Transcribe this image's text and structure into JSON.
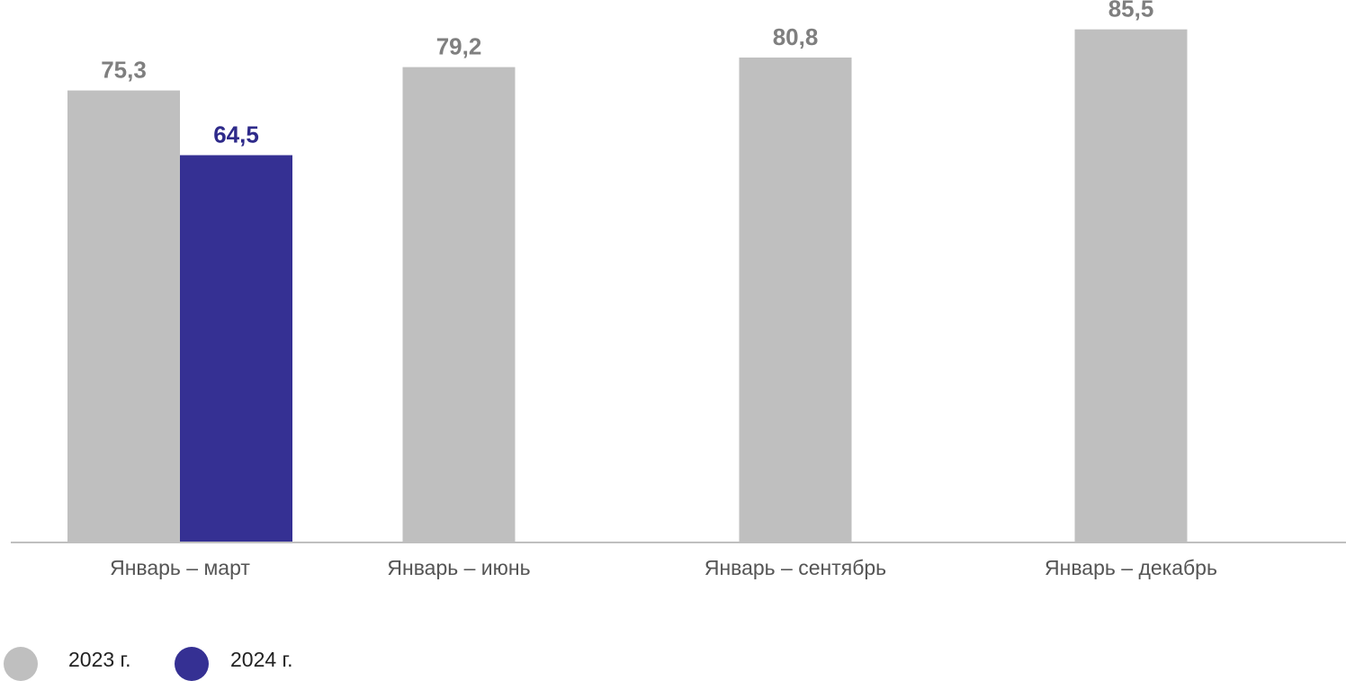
{
  "chart_data": {
    "type": "bar",
    "categories": [
      "Январь – март",
      "Январь – июнь",
      "Январь – сентябрь",
      "Январь – декабрь"
    ],
    "series": [
      {
        "name": "2023 г.",
        "color": "#bfbfbf",
        "label_color": "#7f7f7f",
        "values": [
          75.3,
          79.2,
          80.8,
          85.5
        ],
        "labels": [
          "75,3",
          "79,2",
          "80,8",
          "85,5"
        ]
      },
      {
        "name": "2024 г.",
        "color": "#353093",
        "label_color": "#2e2a8a",
        "values": [
          64.5,
          null,
          null,
          null
        ],
        "labels": [
          "64,5",
          "",
          "",
          ""
        ]
      }
    ],
    "ylim": [
      0,
      88
    ],
    "grid": false,
    "legend": "bottom-left"
  },
  "legend": [
    {
      "label": "2023 г.",
      "color": "#bfbfbf"
    },
    {
      "label": "2024 г.",
      "color": "#353093"
    }
  ]
}
